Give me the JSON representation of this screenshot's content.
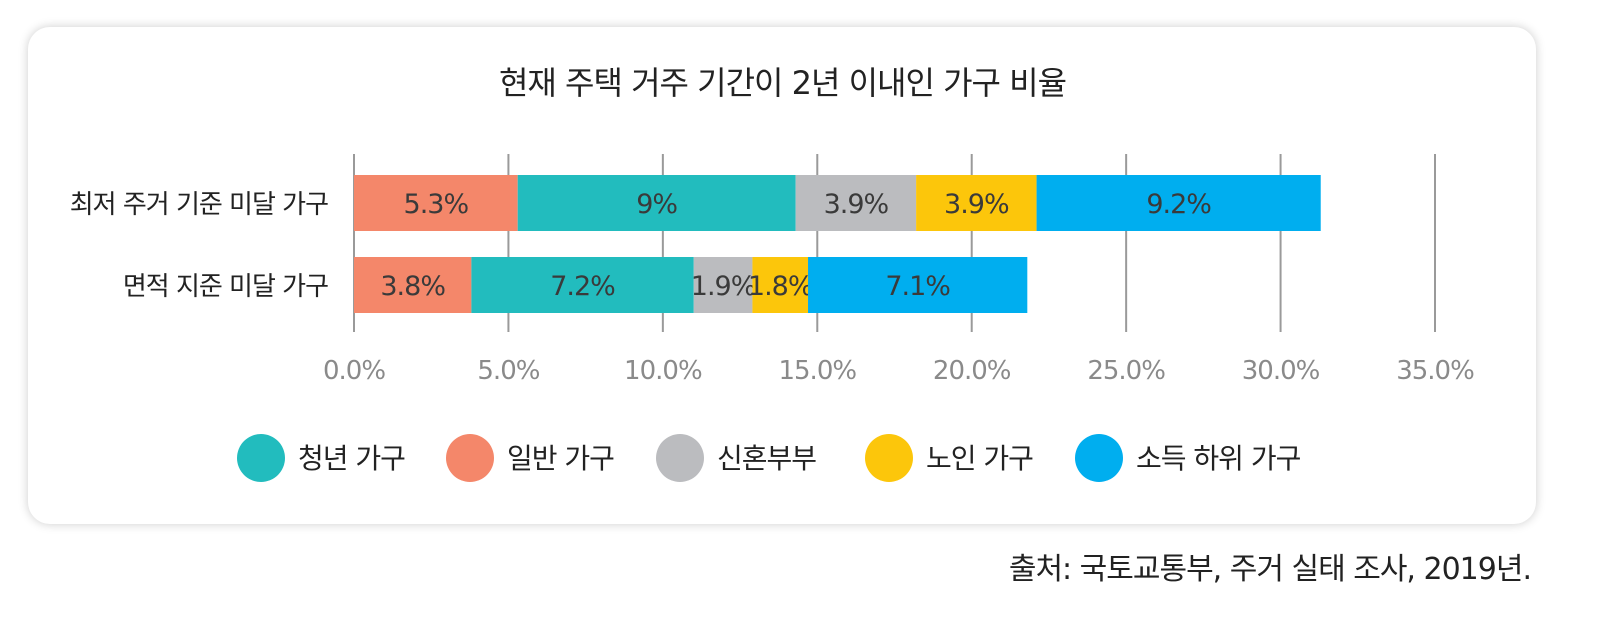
{
  "chart_data": {
    "type": "bar",
    "orientation": "horizontal",
    "stacked": true,
    "title": "현재 주택 거주 기간이 2년 이내인 가구 비율",
    "categories": [
      "최저 주거 기준 미달 가구",
      "면적 지준 미달 가구"
    ],
    "series": [
      {
        "name": "일반 가구",
        "color": "#F4876A",
        "values": [
          5.3,
          3.8
        ],
        "labels": [
          "5.3%",
          "3.8%"
        ]
      },
      {
        "name": "청년 가구",
        "color": "#22BCBE",
        "values": [
          9,
          7.2
        ],
        "labels": [
          "9%",
          "7.2%"
        ]
      },
      {
        "name": "신혼부부",
        "color": "#BBBCBF",
        "values": [
          3.9,
          1.9
        ],
        "labels": [
          "3.9%",
          "1.9%"
        ]
      },
      {
        "name": "노인 가구",
        "color": "#FCC60B",
        "values": [
          3.9,
          1.8
        ],
        "labels": [
          "3.9%",
          "1.8%"
        ]
      },
      {
        "name": "소득 하위 가구",
        "color": "#00AEEF",
        "values": [
          9.2,
          7.1
        ],
        "labels": [
          "9.2%",
          "7.1%"
        ]
      }
    ],
    "legend_order": [
      "청년 가구",
      "일반 가구",
      "신혼부부",
      "노인 가구",
      "소득 하위 가구"
    ],
    "xlim": [
      0,
      35
    ],
    "xticks": [
      0,
      5,
      10,
      15,
      20,
      25,
      30,
      35
    ],
    "xtick_labels": [
      "0.0%",
      "5.0%",
      "10.0%",
      "15.0%",
      "20.0%",
      "25.0%",
      "30.0%",
      "35.0%"
    ],
    "grid": true,
    "legend_position": "bottom"
  },
  "source": "출처: 국토교통부, 주거 실태 조사, 2019년."
}
